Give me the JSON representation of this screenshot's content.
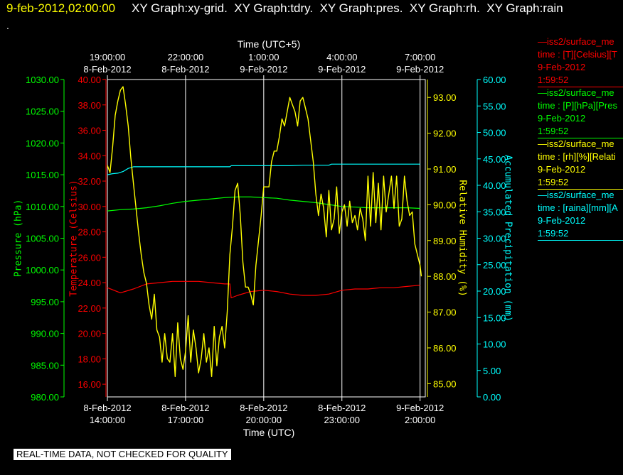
{
  "header": {
    "date": "9-feb-2012,02:00:00",
    "titles": [
      "XY Graph:xy-grid.",
      "XY Graph:tdry.",
      "XY Graph:pres.",
      "XY Graph:rh.",
      "XY Graph:rain"
    ],
    "dot": "."
  },
  "footer": {
    "note": "REAL-TIME DATA, NOT CHECKED FOR QUALITY"
  },
  "legend": [
    {
      "lines": [
        "—iss2/surface_me",
        "time : [T][Celsius][T",
        "9-Feb-2012",
        "1:59:52"
      ],
      "color": "#ff0000"
    },
    {
      "lines": [
        "—iss2/surface_me",
        "time : [P][hPa][Pres",
        "9-Feb-2012",
        "1:59:52"
      ],
      "color": "#00ff00"
    },
    {
      "lines": [
        "—iss2/surface_me",
        "time : [rh][%][Relati",
        "9-Feb-2012",
        "1:59:52"
      ],
      "color": "#ffff00"
    },
    {
      "lines": [
        "—iss2/surface_me",
        "time : [raina][mm][A",
        "9-Feb-2012",
        "1:59:52"
      ],
      "color": "#00ffff"
    }
  ],
  "chart_data": {
    "type": "line",
    "title": "",
    "x_top_label": "Time (UTC+5)",
    "x_bottom_label": "Time (UTC)",
    "xlim": [
      0,
      12.2
    ],
    "x_bottom_ticks": [
      {
        "x": 0,
        "date": "8-Feb-2012",
        "time": "14:00:00"
      },
      {
        "x": 3,
        "date": "8-Feb-2012",
        "time": "17:00:00"
      },
      {
        "x": 6,
        "date": "8-Feb-2012",
        "time": "20:00:00"
      },
      {
        "x": 9,
        "date": "8-Feb-2012",
        "time": "23:00:00"
      },
      {
        "x": 12,
        "date": "9-Feb-2012",
        "time": "2:00:00"
      }
    ],
    "x_top_ticks": [
      {
        "x": 0,
        "time": "19:00:00",
        "date": "8-Feb-2012"
      },
      {
        "x": 3,
        "time": "22:00:00",
        "date": "8-Feb-2012"
      },
      {
        "x": 6,
        "time": "1:00:00",
        "date": "9-Feb-2012"
      },
      {
        "x": 9,
        "time": "4:00:00",
        "date": "9-Feb-2012"
      },
      {
        "x": 12,
        "time": "7:00:00",
        "date": "9-Feb-2012"
      }
    ],
    "axes": [
      {
        "id": "pres",
        "label": "Pressure (hPa)",
        "color": "#00ff00",
        "ylim": [
          980,
          1030
        ],
        "ticks": [
          "980.00",
          "985.00",
          "990.00",
          "995.00",
          "1000.00",
          "1005.00",
          "1010.00",
          "1015.00",
          "1020.00",
          "1025.00",
          "1030.00"
        ]
      },
      {
        "id": "temp",
        "label": "Temperature (Celsius)",
        "color": "#ff0000",
        "ylim": [
          15,
          40
        ],
        "ticks": [
          "16.00",
          "18.00",
          "20.00",
          "22.00",
          "24.00",
          "26.00",
          "28.00",
          "30.00",
          "32.00",
          "34.00",
          "36.00",
          "38.00",
          "40.00"
        ]
      },
      {
        "id": "rh",
        "label": "Relative Humidity (%)",
        "color": "#ffff00",
        "ylim": [
          84.63,
          93.5
        ],
        "ticks": [
          "85.00",
          "86.00",
          "87.00",
          "88.00",
          "89.00",
          "90.00",
          "91.00",
          "92.00",
          "93.00"
        ]
      },
      {
        "id": "rain",
        "label": "Accumulated Precipitation (mm)",
        "color": "#00ffff",
        "ylim": [
          0,
          60
        ],
        "ticks": [
          "0.00",
          "5.00",
          "10.00",
          "15.00",
          "20.00",
          "25.00",
          "30.00",
          "35.00",
          "40.00",
          "45.00",
          "50.00",
          "55.00",
          "60.00"
        ]
      }
    ],
    "grid": true,
    "series": [
      {
        "axis": "temp",
        "color": "#ff0000",
        "x": [
          0,
          0.5,
          1,
          1.5,
          2,
          2.5,
          3,
          3.5,
          4,
          4.5,
          4.7,
          4.75,
          5,
          5.5,
          6,
          6.5,
          7,
          7.5,
          8,
          8.5,
          9,
          9.5,
          10,
          10.5,
          11,
          11.5,
          12
        ],
        "y": [
          23.6,
          23.2,
          23.5,
          23.9,
          24.0,
          24.1,
          24.1,
          24.1,
          24.0,
          23.9,
          23.9,
          22.8,
          23.0,
          23.3,
          23.4,
          23.3,
          23.1,
          23.0,
          23.0,
          23.1,
          23.4,
          23.5,
          23.5,
          23.6,
          23.6,
          23.7,
          23.8
        ]
      },
      {
        "axis": "pres",
        "color": "#00ff00",
        "x": [
          0,
          0.5,
          1,
          1.5,
          2,
          2.5,
          3,
          3.5,
          4,
          4.5,
          5,
          5.5,
          6,
          6.5,
          7,
          7.5,
          8,
          8.5,
          9,
          9.5,
          10,
          10.5,
          11,
          11.5,
          12
        ],
        "y": [
          1009.3,
          1009.5,
          1009.6,
          1009.8,
          1010.1,
          1010.5,
          1010.8,
          1011.0,
          1011.2,
          1011.4,
          1011.5,
          1011.5,
          1011.4,
          1011.3,
          1011.0,
          1010.8,
          1010.6,
          1010.3,
          1010.0,
          1009.9,
          1009.8,
          1009.8,
          1009.8,
          1009.8,
          1009.7
        ]
      },
      {
        "axis": "rain",
        "color": "#00ffff",
        "x": [
          0,
          0.2,
          0.4,
          0.6,
          0.8,
          1.0,
          2,
          3,
          4,
          4.7,
          4.75,
          5,
          6,
          7,
          7.5,
          8,
          8.5,
          8.6,
          9,
          10,
          11,
          12
        ],
        "y": [
          42.0,
          42.2,
          42.3,
          42.6,
          43.2,
          43.5,
          43.5,
          43.5,
          43.5,
          43.5,
          43.7,
          43.7,
          43.7,
          43.7,
          43.8,
          43.8,
          43.8,
          44.0,
          44.0,
          44.0,
          44.0,
          44.0
        ]
      },
      {
        "axis": "rh",
        "color": "#ffff00",
        "x": [
          0,
          0.1,
          0.2,
          0.3,
          0.4,
          0.5,
          0.6,
          0.7,
          0.8,
          0.9,
          1.0,
          1.1,
          1.2,
          1.3,
          1.4,
          1.5,
          1.6,
          1.7,
          1.8,
          1.9,
          2.0,
          2.1,
          2.2,
          2.3,
          2.4,
          2.5,
          2.6,
          2.7,
          2.8,
          2.9,
          3.0,
          3.1,
          3.2,
          3.3,
          3.4,
          3.5,
          3.6,
          3.7,
          3.8,
          3.9,
          4.0,
          4.1,
          4.2,
          4.3,
          4.4,
          4.5,
          4.6,
          4.7,
          4.8,
          4.9,
          5.0,
          5.1,
          5.2,
          5.3,
          5.4,
          5.5,
          5.6,
          5.7,
          5.8,
          5.9,
          6.0,
          6.1,
          6.2,
          6.3,
          6.4,
          6.5,
          6.6,
          6.7,
          6.8,
          6.9,
          7.0,
          7.1,
          7.2,
          7.3,
          7.4,
          7.5,
          7.6,
          7.7,
          7.8,
          7.9,
          8.0,
          8.1,
          8.2,
          8.3,
          8.4,
          8.5,
          8.6,
          8.7,
          8.8,
          8.9,
          9.0,
          9.1,
          9.2,
          9.3,
          9.4,
          9.5,
          9.6,
          9.7,
          9.8,
          9.9,
          10.0,
          10.1,
          10.2,
          10.3,
          10.4,
          10.5,
          10.6,
          10.7,
          10.8,
          10.9,
          11.0,
          11.1,
          11.2,
          11.3,
          11.4,
          11.5,
          11.6,
          11.7,
          11.8,
          11.9,
          12.0,
          12.05
        ],
        "y": [
          91.1,
          90.9,
          91.6,
          92.5,
          92.9,
          93.2,
          93.3,
          92.8,
          92.2,
          91.3,
          90.6,
          89.9,
          89.2,
          88.6,
          88.1,
          87.8,
          87.2,
          86.8,
          87.5,
          86.5,
          86.3,
          85.6,
          86.4,
          85.7,
          85.6,
          86.4,
          85.2,
          86.7,
          85.7,
          85.4,
          85.9,
          86.9,
          85.6,
          86.5,
          86.0,
          85.3,
          85.7,
          86.4,
          85.6,
          86.0,
          85.2,
          86.6,
          85.5,
          86.3,
          86.6,
          86.0,
          87.0,
          88.6,
          89.4,
          90.4,
          90.6,
          89.7,
          88.4,
          87.7,
          87.7,
          87.5,
          87.2,
          88.3,
          89.0,
          89.7,
          90.5,
          90.5,
          90.5,
          91.2,
          91.5,
          91.5,
          91.9,
          92.4,
          92.2,
          92.6,
          93.0,
          92.8,
          92.6,
          92.2,
          92.9,
          93.0,
          92.7,
          92.4,
          91.8,
          91.2,
          90.3,
          89.7,
          90.3,
          89.9,
          89.1,
          90.4,
          89.3,
          89.6,
          90.5,
          89.2,
          89.8,
          90.0,
          89.4,
          90.1,
          89.5,
          89.7,
          89.3,
          89.9,
          89.6,
          89.0,
          90.8,
          89.4,
          90.9,
          89.5,
          90.6,
          89.3,
          90.8,
          89.8,
          90.3,
          90.8,
          89.9,
          90.8,
          89.4,
          89.6,
          90.8,
          90.1,
          89.7,
          89.8,
          88.9,
          88.6,
          88.3,
          88.0
        ]
      }
    ]
  }
}
